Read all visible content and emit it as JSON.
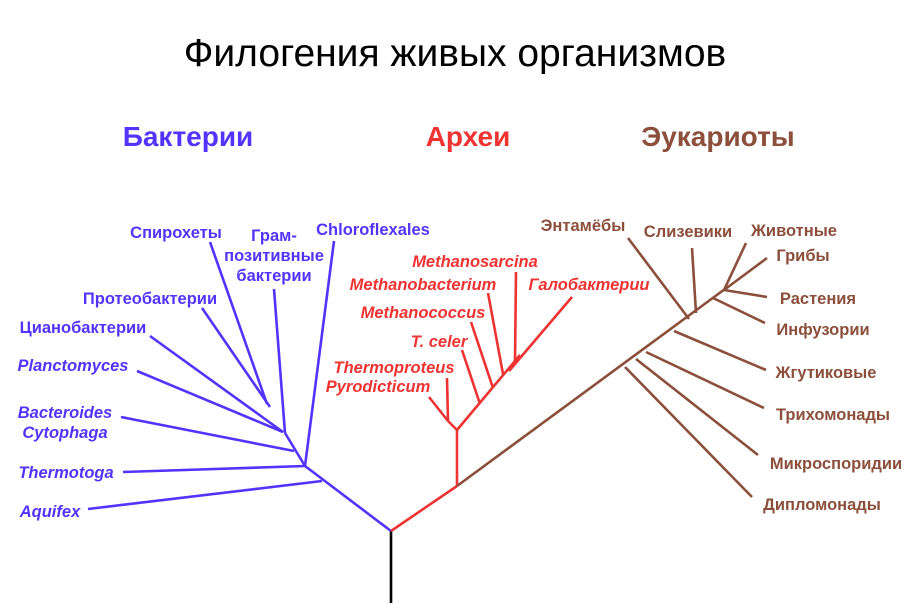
{
  "title": "Филогения живых организмов",
  "colors": {
    "bacteria": "#5533ff",
    "archaea": "#ee3333",
    "eukaryota": "#8b4f3b",
    "root": "#000000"
  },
  "domains": {
    "bacteria": "Бактерии",
    "archaea": "Археи",
    "eukaryota": "Эукариоты"
  },
  "bacteria": {
    "spirochetes": "Спирохеты",
    "gram_positive": [
      "Грам-",
      "позитивные",
      "бактерии"
    ],
    "chloroflexales": "Chloroflexales",
    "proteobacteria": "Протеобактерии",
    "cyanobacteria": "Цианобактерии",
    "planctomyces": "Planctomyces",
    "bacteroides_cytophaga": [
      "Bacteroides",
      "Cytophaga"
    ],
    "thermotoga": "Thermotoga",
    "aquifex": "Aquifex"
  },
  "archaea": {
    "methanosarcina": "Methanosarcina",
    "methanobacterium": "Methanobacterium",
    "halobacteria": "Галобактерии",
    "methanococcus": "Methanococcus",
    "t_celer": "T. celer",
    "thermoproteus": "Thermoproteus",
    "pyrodicticum": "Pyrodicticum"
  },
  "eukaryota": {
    "entamoebae": "Энтамёбы",
    "slime_molds": "Слизевики",
    "animals": "Животные",
    "fungi": "Грибы",
    "plants": "Растения",
    "ciliates": "Инфузории",
    "flagellates": "Жгутиковые",
    "trichomonads": "Трихомонады",
    "microsporidia": "Микроспоридии",
    "diplomonads": "Дипломонады"
  }
}
